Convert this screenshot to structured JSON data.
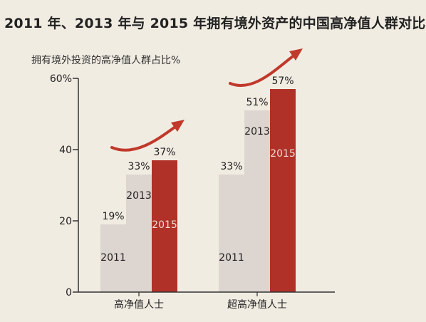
{
  "title": "2011 年、2013 年与 2015 年拥有境外资产的中国高净值人群对比",
  "ylabel": "拥有境外投资的高净值人群占比%",
  "colors": {
    "background": "#f1ece2",
    "bar_light": "#ddd5d0",
    "bar_red": "#b03128",
    "arrow": "#c0392b",
    "axis": "#333333",
    "text": "#222222"
  },
  "chart_data": {
    "type": "bar",
    "title": "2011 年、2013 年与 2015 年拥有境外资产的中国高净值人群对比",
    "ylabel": "拥有境外投资的高净值人群占比%",
    "xlabel": "",
    "categories": [
      "高净值人士",
      "超高净值人士"
    ],
    "series": [
      {
        "name": "2011",
        "values": [
          19,
          33
        ],
        "labels": [
          "19%",
          "33%"
        ]
      },
      {
        "name": "2013",
        "values": [
          33,
          51
        ],
        "labels": [
          "33%",
          "51%"
        ]
      },
      {
        "name": "2015",
        "values": [
          37,
          57
        ],
        "labels": [
          "37%",
          "57%"
        ]
      }
    ],
    "yticks": [
      {
        "value": 0,
        "label": "0"
      },
      {
        "value": 20,
        "label": "20"
      },
      {
        "value": 40,
        "label": "40"
      },
      {
        "value": 60,
        "label": "60%"
      }
    ],
    "ylim": [
      0,
      60
    ],
    "grid": false,
    "legend": "none",
    "annotations": "curved red arrows rising over each group"
  }
}
